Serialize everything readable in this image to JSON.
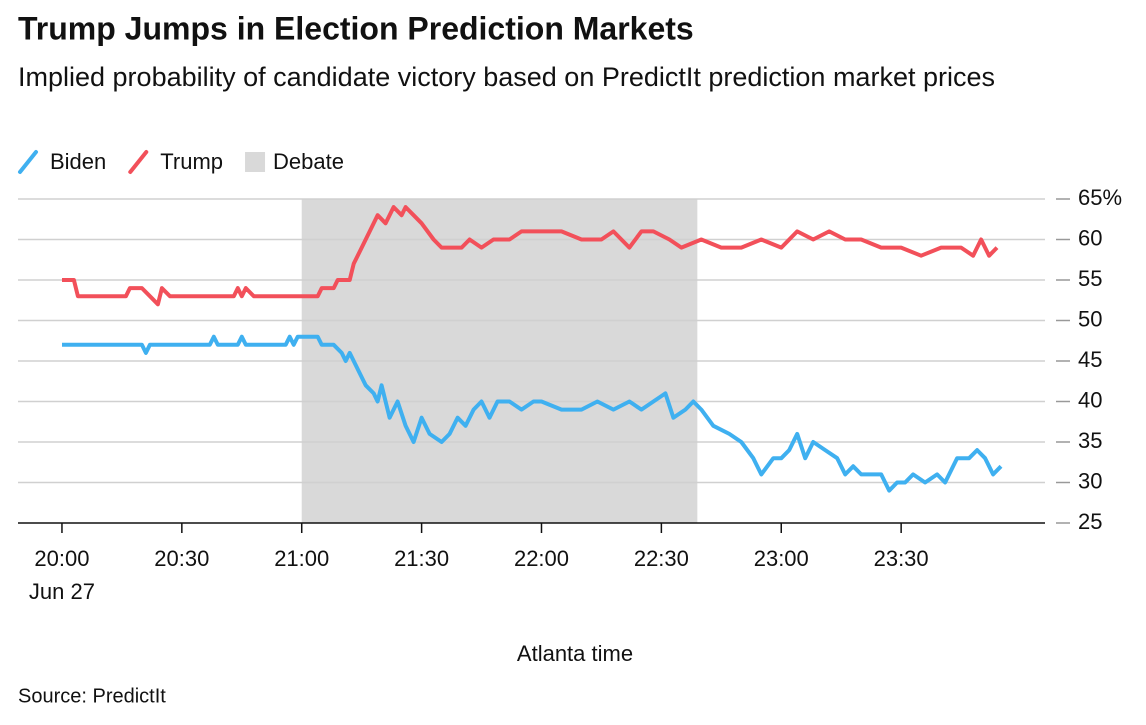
{
  "chart_data": {
    "type": "line",
    "title": "Trump Jumps in Election Prediction Markets",
    "subtitle": "Implied probability of candidate victory based on PredictIt prediction market prices",
    "xlabel": "Atlanta time",
    "source": "Source: PredictIt",
    "x_date_label": "Jun 27",
    "xlim": [
      "19:49",
      "24:06"
    ],
    "xticks": [
      "20:00",
      "20:30",
      "21:00",
      "21:30",
      "22:00",
      "22:30",
      "23:00",
      "23:30"
    ],
    "ylim": [
      25,
      65
    ],
    "yticks": [
      25,
      30,
      35,
      40,
      45,
      50,
      55,
      60,
      {
        "value": 65,
        "label": "65%"
      }
    ],
    "grid": true,
    "legend": "top-left",
    "shaded_region": {
      "name": "Debate",
      "start": "21:00",
      "end": "22:39",
      "color": "#d9d9d9"
    },
    "series": [
      {
        "name": "Biden",
        "color": "#3fb0f0",
        "x": [
          "20:00",
          "20:20",
          "20:21",
          "20:22",
          "20:37",
          "20:38",
          "20:39",
          "20:44",
          "20:45",
          "20:46",
          "20:56",
          "20:57",
          "20:58",
          "20:59",
          "21:04",
          "21:05",
          "21:08",
          "21:10",
          "21:11",
          "21:12",
          "21:14",
          "21:16",
          "21:18",
          "21:19",
          "21:20",
          "21:22",
          "21:24",
          "21:26",
          "21:28",
          "21:30",
          "21:32",
          "21:35",
          "21:37",
          "21:39",
          "21:41",
          "21:43",
          "21:45",
          "21:47",
          "21:49",
          "21:52",
          "21:55",
          "21:58",
          "22:00",
          "22:05",
          "22:10",
          "22:14",
          "22:18",
          "22:22",
          "22:25",
          "22:28",
          "22:31",
          "22:33",
          "22:36",
          "22:38",
          "22:40",
          "22:43",
          "22:47",
          "22:50",
          "22:53",
          "22:55",
          "22:58",
          "23:00",
          "23:02",
          "23:04",
          "23:06",
          "23:08",
          "23:11",
          "23:14",
          "23:16",
          "23:18",
          "23:20",
          "23:25",
          "23:27",
          "23:29",
          "23:31",
          "23:33",
          "23:36",
          "23:39",
          "23:41",
          "23:44",
          "23:47",
          "23:49",
          "23:51",
          "23:53",
          "23:55"
        ],
        "values": [
          47,
          47,
          46,
          47,
          47,
          48,
          47,
          47,
          48,
          47,
          47,
          48,
          47,
          48,
          48,
          47,
          47,
          46,
          45,
          46,
          44,
          42,
          41,
          40,
          42,
          38,
          40,
          37,
          35,
          38,
          36,
          35,
          36,
          38,
          37,
          39,
          40,
          38,
          40,
          40,
          39,
          40,
          40,
          39,
          39,
          40,
          39,
          40,
          39,
          40,
          41,
          38,
          39,
          40,
          39,
          37,
          36,
          35,
          33,
          31,
          33,
          33,
          34,
          36,
          33,
          35,
          34,
          33,
          31,
          32,
          31,
          31,
          29,
          30,
          30,
          31,
          30,
          31,
          30,
          33,
          33,
          34,
          33,
          31,
          32
        ]
      },
      {
        "name": "Trump",
        "color": "#f2505a",
        "x": [
          "20:00",
          "20:03",
          "20:04",
          "20:16",
          "20:17",
          "20:20",
          "20:22",
          "20:24",
          "20:25",
          "20:27",
          "20:43",
          "20:44",
          "20:45",
          "20:46",
          "20:48",
          "21:04",
          "21:05",
          "21:08",
          "21:09",
          "21:12",
          "21:13",
          "21:15",
          "21:17",
          "21:19",
          "21:21",
          "21:23",
          "21:25",
          "21:26",
          "21:28",
          "21:30",
          "21:33",
          "21:35",
          "21:40",
          "21:42",
          "21:45",
          "21:48",
          "21:52",
          "21:55",
          "21:58",
          "22:05",
          "22:10",
          "22:15",
          "22:18",
          "22:22",
          "22:25",
          "22:28",
          "22:32",
          "22:35",
          "22:40",
          "22:45",
          "22:50",
          "22:55",
          "23:00",
          "23:04",
          "23:08",
          "23:12",
          "23:16",
          "23:20",
          "23:25",
          "23:30",
          "23:35",
          "23:40",
          "23:45",
          "23:48",
          "23:50",
          "23:52",
          "23:54"
        ],
        "values": [
          55,
          55,
          53,
          53,
          54,
          54,
          53,
          52,
          54,
          53,
          53,
          54,
          53,
          54,
          53,
          53,
          54,
          54,
          55,
          55,
          57,
          59,
          61,
          63,
          62,
          64,
          63,
          64,
          63,
          62,
          60,
          59,
          59,
          60,
          59,
          60,
          60,
          61,
          61,
          61,
          60,
          60,
          61,
          59,
          61,
          61,
          60,
          59,
          60,
          59,
          59,
          60,
          59,
          61,
          60,
          61,
          60,
          60,
          59,
          59,
          58,
          59,
          59,
          58,
          60,
          58,
          59
        ]
      }
    ]
  }
}
